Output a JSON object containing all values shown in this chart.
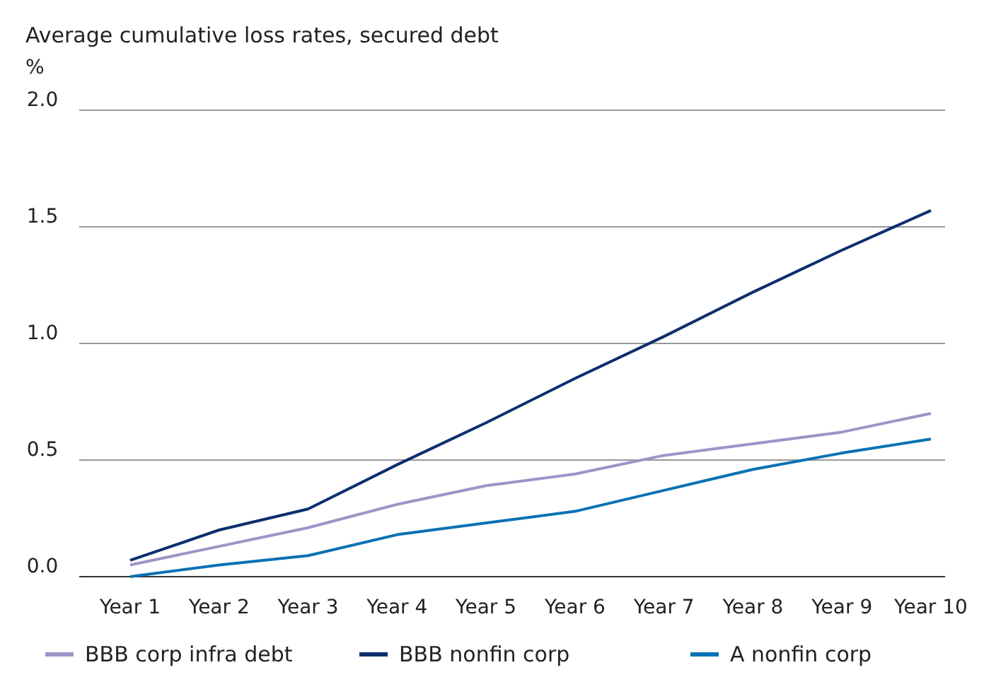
{
  "chart_data": {
    "type": "line",
    "title": "Average cumulative loss rates, secured debt",
    "ylabel": "%",
    "categories": [
      "Year 1",
      "Year 2",
      "Year 3",
      "Year 4",
      "Year 5",
      "Year 6",
      "Year 7",
      "Year 8",
      "Year 9",
      "Year 10"
    ],
    "series": [
      {
        "name": "BBB corp infra debt",
        "color": "#9d94c8",
        "values": [
          0.05,
          0.13,
          0.21,
          0.31,
          0.39,
          0.44,
          0.52,
          0.57,
          0.62,
          0.7
        ]
      },
      {
        "name": "BBB nonfin corp",
        "color": "#0b2f6e",
        "values": [
          0.07,
          0.2,
          0.29,
          0.48,
          0.66,
          0.85,
          1.03,
          1.22,
          1.4,
          1.57
        ]
      },
      {
        "name": "A nonfin corp",
        "color": "#0a71b4",
        "values": [
          0,
          0.05,
          0.09,
          0.18,
          0.23,
          0.28,
          0.37,
          0.46,
          0.53,
          0.59
        ]
      }
    ],
    "ylim": [
      0,
      2
    ],
    "yticks": [
      {
        "value": 0,
        "label": "0.0"
      },
      {
        "value": 0.5,
        "label": "0.5"
      },
      {
        "value": 1,
        "label": "1.0"
      },
      {
        "value": 1.5,
        "label": "1.5"
      },
      {
        "value": 2,
        "label": "2.0"
      }
    ],
    "grid": "y",
    "legend": "bottom",
    "marker": "none",
    "line_style": "solid"
  }
}
